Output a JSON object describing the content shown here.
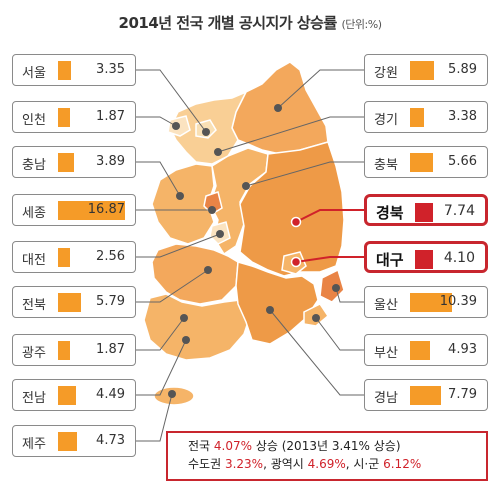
{
  "title": "2014년 전국 개별 공시지가 상승률",
  "unit": "(단위:%)",
  "chart_data": {
    "type": "bar",
    "title": "2014년 전국 개별 공시지가 상승률",
    "unit": "%",
    "categories": [
      "서울",
      "인천",
      "충남",
      "세종",
      "대전",
      "전북",
      "광주",
      "전남",
      "제주",
      "강원",
      "경기",
      "충북",
      "경북",
      "대구",
      "울산",
      "부산",
      "경남"
    ],
    "values": [
      3.35,
      1.87,
      3.89,
      16.87,
      2.56,
      5.79,
      1.87,
      4.49,
      4.73,
      5.89,
      3.38,
      5.66,
      7.74,
      4.1,
      10.39,
      4.93,
      7.79
    ],
    "value_labels": [
      "3.35",
      "1.87",
      "3.89",
      "16.87",
      "2.56",
      "5.79",
      "1.87",
      "4.49",
      "4.73",
      "5.89",
      "3.38",
      "5.66",
      "7.74",
      "4.10",
      "10.39",
      "4.93",
      "7.79"
    ],
    "highlighted": [
      "경북",
      "대구"
    ],
    "colors": {
      "bar": "#f59b28",
      "highlight_bar": "#d0222a",
      "highlight_border": "#c8262e"
    }
  },
  "summary": {
    "line1_pre": "전국 ",
    "line1_red": "4.07%",
    "line1_post": " 상승 (2013년 3.41% 상승)",
    "line2_a": "수도권 ",
    "line2_a_val": "3.23%",
    "line2_b": ", 광역시 ",
    "line2_b_val": "4.69%",
    "line2_c": ", 시·군 ",
    "line2_c_val": "6.12%"
  },
  "map_colors": {
    "light": "#f9cf95",
    "mid": "#f5b468",
    "orange": "#ee9a47",
    "dark": "#e98446"
  }
}
